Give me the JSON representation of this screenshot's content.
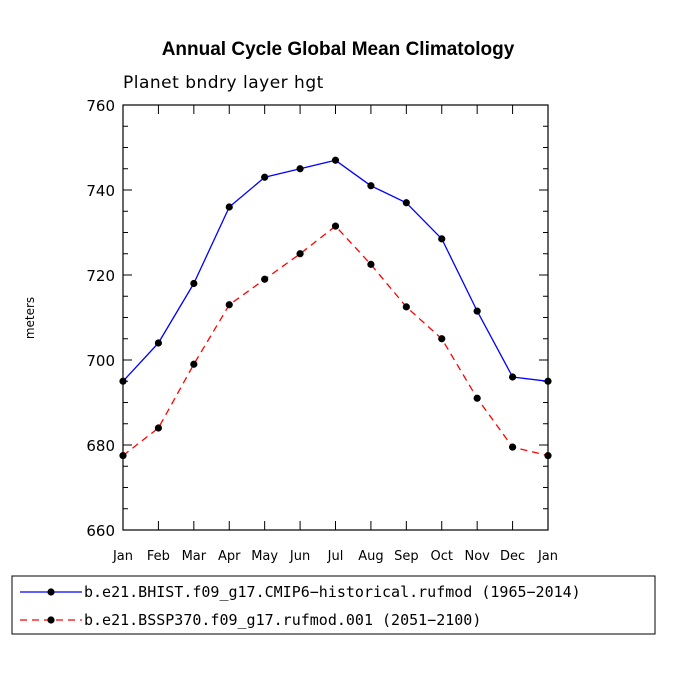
{
  "chart_data": {
    "type": "line",
    "title": "Annual Cycle Global Mean Climatology",
    "subtitle": "Planet bndry layer hgt",
    "xlabel": "",
    "ylabel": "meters",
    "ylim": [
      660,
      760
    ],
    "yticks": [
      660,
      680,
      700,
      720,
      740,
      760
    ],
    "yticklabels": [
      "660",
      "680",
      "700",
      "720",
      "740",
      "760"
    ],
    "categories": [
      "Jan",
      "Feb",
      "Mar",
      "Apr",
      "May",
      "Jun",
      "Jul",
      "Aug",
      "Sep",
      "Oct",
      "Nov",
      "Dec",
      "Jan"
    ],
    "series": [
      {
        "name": "b.e21.BHIST.f09_g17.CMIP6−historical.rufmod (1965−2014)",
        "color": "#0000ff",
        "dash": "solid",
        "values": [
          695,
          704,
          718,
          736,
          743,
          745,
          747,
          741,
          737,
          728.5,
          711.5,
          696,
          695
        ]
      },
      {
        "name": "b.e21.BSSP370.f09_g17.rufmod.001 (2051−2100)",
        "color": "#ff0000",
        "dash": "dashed",
        "values": [
          677.5,
          684,
          699,
          713,
          719,
          725,
          731.5,
          722.5,
          712.5,
          705,
          691,
          679.5,
          677.5
        ]
      }
    ],
    "grid": false,
    "legend": "bottom"
  }
}
